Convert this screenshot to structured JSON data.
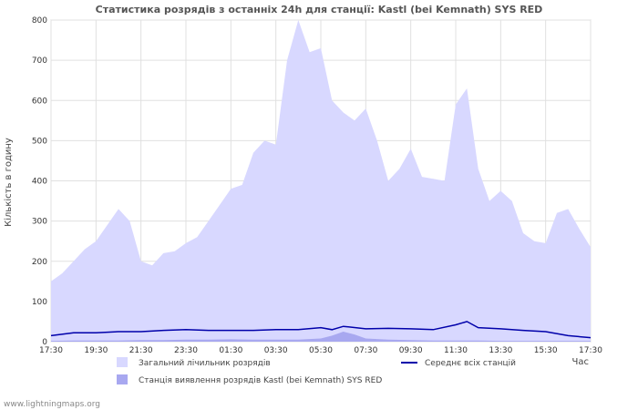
{
  "chart_data": {
    "type": "area",
    "title": "Статистика розрядів з останніх 24h для станції: Kastl (bei Kemnath) SYS RED",
    "ylabel": "Кількість в годину",
    "xlabel": "Час",
    "ylim": [
      0,
      800
    ],
    "yticks": [
      0,
      100,
      200,
      300,
      400,
      500,
      600,
      700,
      800
    ],
    "xlim": [
      0,
      24
    ],
    "xtick_labels": [
      "17:30",
      "19:30",
      "21:30",
      "23:30",
      "01:30",
      "03:30",
      "05:30",
      "07:30",
      "09:30",
      "11:30",
      "13:30",
      "15:30",
      "17:30"
    ],
    "grid": true,
    "series": [
      {
        "name": "Загальний лічильник розрядів",
        "kind": "area",
        "color": "#d8d8ff",
        "x": [
          0,
          0.5,
          1,
          1.5,
          2,
          2.5,
          3,
          3.5,
          4,
          4.5,
          5,
          5.5,
          6,
          6.5,
          7,
          7.5,
          8,
          8.5,
          9,
          9.5,
          10,
          10.5,
          11,
          11.5,
          12,
          12.5,
          13,
          13.5,
          14,
          14.5,
          15,
          15.5,
          16,
          16.5,
          17,
          17.5,
          18,
          18.5,
          19,
          19.5,
          20,
          20.5,
          21,
          21.5,
          22,
          22.5,
          23,
          23.5,
          24
        ],
        "values": [
          150,
          170,
          200,
          230,
          250,
          290,
          330,
          300,
          200,
          190,
          220,
          225,
          245,
          260,
          300,
          340,
          380,
          390,
          470,
          500,
          490,
          700,
          800,
          720,
          730,
          600,
          570,
          550,
          580,
          500,
          400,
          430,
          480,
          410,
          405,
          400,
          590,
          630,
          430,
          350,
          375,
          350,
          270,
          250,
          245,
          320,
          330,
          280,
          235
        ]
      },
      {
        "name": "Станція виявлення розрядів Kastl (bei Kemnath) SYS RED",
        "kind": "area",
        "color": "#a8a8f0",
        "x": [
          0,
          1,
          2,
          3,
          4,
          5,
          6,
          7,
          8,
          9,
          10,
          11,
          12,
          12.5,
          13,
          13.5,
          14,
          15,
          16,
          17,
          18,
          19,
          20,
          21,
          22,
          23,
          24
        ],
        "values": [
          2,
          3,
          3,
          3,
          4,
          4,
          5,
          5,
          6,
          5,
          5,
          5,
          8,
          15,
          25,
          18,
          8,
          5,
          4,
          3,
          3,
          3,
          2,
          2,
          2,
          2,
          2
        ]
      },
      {
        "name": "Середнє всіх станцій",
        "kind": "line",
        "color": "#0000aa",
        "x": [
          0,
          1,
          2,
          3,
          4,
          5,
          6,
          7,
          8,
          9,
          10,
          11,
          12,
          12.5,
          13,
          14,
          15,
          16,
          17,
          18,
          18.5,
          19,
          20,
          21,
          22,
          23,
          24
        ],
        "values": [
          15,
          22,
          22,
          25,
          25,
          28,
          30,
          28,
          28,
          28,
          30,
          30,
          35,
          30,
          38,
          32,
          33,
          32,
          30,
          42,
          50,
          35,
          32,
          28,
          25,
          15,
          10
        ]
      }
    ],
    "legend": [
      {
        "label": "Загальний лічильник розрядів",
        "color": "#d8d8ff",
        "kind": "box"
      },
      {
        "label": "Станція виявлення розрядів Kastl (bei Kemnath) SYS RED",
        "color": "#a8a8f0",
        "kind": "box"
      },
      {
        "label": "Середнє всіх станцій",
        "color": "#0000aa",
        "kind": "line"
      }
    ]
  },
  "footer": "www.lightningmaps.org"
}
